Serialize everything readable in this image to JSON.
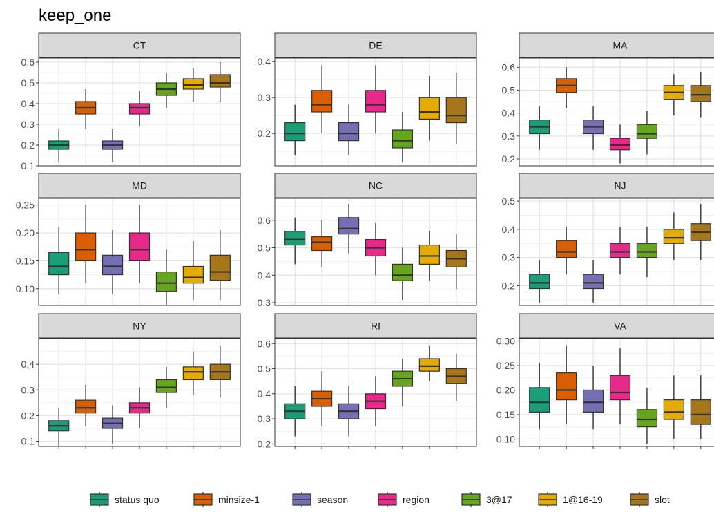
{
  "title": "keep_one",
  "colors": {
    "status quo": "#1b9e77",
    "minsize-1": "#d95f02",
    "season": "#7570b3",
    "region": "#e7298a",
    "3@17": "#66a61e",
    "1@16-19": "#e6ab02",
    "slot": "#a6761d"
  },
  "legend": {
    "position": "bottom",
    "items": [
      "status quo",
      "minsize-1",
      "season",
      "region",
      "3@17",
      "1@16-19",
      "slot"
    ]
  },
  "chart_data": {
    "type": "box",
    "title": "keep_one",
    "xlabel": "",
    "ylabel": "",
    "grid": true,
    "facets": [
      {
        "name": "CT",
        "ylim": [
          0.1,
          0.62
        ],
        "ticks": [
          "0.1",
          "0.2",
          "0.3",
          "0.4",
          "0.5",
          "0.6"
        ],
        "boxes": [
          {
            "series": "status quo",
            "min": 0.12,
            "q1": 0.18,
            "median": 0.2,
            "q3": 0.22,
            "max": 0.28
          },
          {
            "series": "minsize-1",
            "min": 0.28,
            "q1": 0.35,
            "median": 0.38,
            "q3": 0.41,
            "max": 0.47
          },
          {
            "series": "season",
            "min": 0.12,
            "q1": 0.18,
            "median": 0.2,
            "q3": 0.22,
            "max": 0.28
          },
          {
            "series": "region",
            "min": 0.29,
            "q1": 0.35,
            "median": 0.38,
            "q3": 0.4,
            "max": 0.46
          },
          {
            "series": "3@17",
            "min": 0.38,
            "q1": 0.44,
            "median": 0.47,
            "q3": 0.5,
            "max": 0.55
          },
          {
            "series": "1@16-19",
            "min": 0.41,
            "q1": 0.47,
            "median": 0.49,
            "q3": 0.52,
            "max": 0.57
          },
          {
            "series": "slot",
            "min": 0.41,
            "q1": 0.48,
            "median": 0.5,
            "q3": 0.54,
            "max": 0.6
          }
        ]
      },
      {
        "name": "DE",
        "ylim": [
          0.11,
          0.41
        ],
        "ticks": [
          "0.2",
          "0.3",
          "0.4"
        ],
        "boxes": [
          {
            "series": "status quo",
            "min": 0.14,
            "q1": 0.18,
            "median": 0.2,
            "q3": 0.23,
            "max": 0.28
          },
          {
            "series": "minsize-1",
            "min": 0.2,
            "q1": 0.26,
            "median": 0.28,
            "q3": 0.32,
            "max": 0.39
          },
          {
            "series": "season",
            "min": 0.14,
            "q1": 0.18,
            "median": 0.2,
            "q3": 0.23,
            "max": 0.28
          },
          {
            "series": "region",
            "min": 0.2,
            "q1": 0.26,
            "median": 0.28,
            "q3": 0.32,
            "max": 0.39
          },
          {
            "series": "3@17",
            "min": 0.12,
            "q1": 0.16,
            "median": 0.18,
            "q3": 0.21,
            "max": 0.26
          },
          {
            "series": "1@16-19",
            "min": 0.18,
            "q1": 0.24,
            "median": 0.26,
            "q3": 0.3,
            "max": 0.36
          },
          {
            "series": "slot",
            "min": 0.17,
            "q1": 0.23,
            "median": 0.25,
            "q3": 0.3,
            "max": 0.37
          }
        ]
      },
      {
        "name": "MA",
        "ylim": [
          0.17,
          0.64
        ],
        "ticks": [
          "0.2",
          "0.3",
          "0.4",
          "0.5",
          "0.6"
        ],
        "boxes": [
          {
            "series": "status quo",
            "min": 0.24,
            "q1": 0.31,
            "median": 0.34,
            "q3": 0.37,
            "max": 0.43
          },
          {
            "series": "minsize-1",
            "min": 0.42,
            "q1": 0.49,
            "median": 0.52,
            "q3": 0.55,
            "max": 0.6
          },
          {
            "series": "season",
            "min": 0.24,
            "q1": 0.31,
            "median": 0.34,
            "q3": 0.37,
            "max": 0.43
          },
          {
            "series": "region",
            "min": 0.18,
            "q1": 0.24,
            "median": 0.26,
            "q3": 0.29,
            "max": 0.35
          },
          {
            "series": "3@17",
            "min": 0.22,
            "q1": 0.29,
            "median": 0.31,
            "q3": 0.35,
            "max": 0.41
          },
          {
            "series": "1@16-19",
            "min": 0.39,
            "q1": 0.46,
            "median": 0.49,
            "q3": 0.52,
            "max": 0.57
          },
          {
            "series": "slot",
            "min": 0.38,
            "q1": 0.45,
            "median": 0.48,
            "q3": 0.52,
            "max": 0.58
          }
        ]
      },
      {
        "name": "MD",
        "ylim": [
          0.07,
          0.262
        ],
        "ticks": [
          "0.10",
          "0.15",
          "0.20",
          "0.25"
        ],
        "boxes": [
          {
            "series": "status quo",
            "min": 0.09,
            "q1": 0.125,
            "median": 0.14,
            "q3": 0.165,
            "max": 0.21
          },
          {
            "series": "minsize-1",
            "min": 0.11,
            "q1": 0.15,
            "median": 0.17,
            "q3": 0.2,
            "max": 0.25
          },
          {
            "series": "season",
            "min": 0.09,
            "q1": 0.125,
            "median": 0.14,
            "q3": 0.16,
            "max": 0.205
          },
          {
            "series": "region",
            "min": 0.11,
            "q1": 0.15,
            "median": 0.17,
            "q3": 0.2,
            "max": 0.25
          },
          {
            "series": "3@17",
            "min": 0.07,
            "q1": 0.095,
            "median": 0.11,
            "q3": 0.13,
            "max": 0.17
          },
          {
            "series": "1@16-19",
            "min": 0.08,
            "q1": 0.11,
            "median": 0.12,
            "q3": 0.14,
            "max": 0.185
          },
          {
            "series": "slot",
            "min": 0.08,
            "q1": 0.115,
            "median": 0.13,
            "q3": 0.16,
            "max": 0.205
          }
        ]
      },
      {
        "name": "NC",
        "ylim": [
          0.29,
          0.68
        ],
        "ticks": [
          "0.3",
          "0.4",
          "0.5",
          "0.6"
        ],
        "boxes": [
          {
            "series": "status quo",
            "min": 0.44,
            "q1": 0.51,
            "median": 0.53,
            "q3": 0.56,
            "max": 0.61
          },
          {
            "series": "minsize-1",
            "min": 0.43,
            "q1": 0.49,
            "median": 0.52,
            "q3": 0.54,
            "max": 0.6
          },
          {
            "series": "season",
            "min": 0.48,
            "q1": 0.55,
            "median": 0.57,
            "q3": 0.61,
            "max": 0.66
          },
          {
            "series": "region",
            "min": 0.4,
            "q1": 0.47,
            "median": 0.5,
            "q3": 0.53,
            "max": 0.59
          },
          {
            "series": "3@17",
            "min": 0.31,
            "q1": 0.38,
            "median": 0.4,
            "q3": 0.44,
            "max": 0.5
          },
          {
            "series": "1@16-19",
            "min": 0.38,
            "q1": 0.44,
            "median": 0.47,
            "q3": 0.51,
            "max": 0.56
          },
          {
            "series": "slot",
            "min": 0.35,
            "q1": 0.43,
            "median": 0.46,
            "q3": 0.49,
            "max": 0.55
          }
        ]
      },
      {
        "name": "NJ",
        "ylim": [
          0.13,
          0.51
        ],
        "ticks": [
          "0.2",
          "0.3",
          "0.4",
          "0.5"
        ],
        "boxes": [
          {
            "series": "status quo",
            "min": 0.14,
            "q1": 0.19,
            "median": 0.21,
            "q3": 0.24,
            "max": 0.29
          },
          {
            "series": "minsize-1",
            "min": 0.24,
            "q1": 0.3,
            "median": 0.32,
            "q3": 0.36,
            "max": 0.41
          },
          {
            "series": "season",
            "min": 0.14,
            "q1": 0.19,
            "median": 0.21,
            "q3": 0.24,
            "max": 0.29
          },
          {
            "series": "region",
            "min": 0.24,
            "q1": 0.3,
            "median": 0.32,
            "q3": 0.35,
            "max": 0.41
          },
          {
            "series": "3@17",
            "min": 0.23,
            "q1": 0.3,
            "median": 0.32,
            "q3": 0.35,
            "max": 0.41
          },
          {
            "series": "1@16-19",
            "min": 0.29,
            "q1": 0.35,
            "median": 0.37,
            "q3": 0.4,
            "max": 0.46
          },
          {
            "series": "slot",
            "min": 0.29,
            "q1": 0.36,
            "median": 0.39,
            "q3": 0.42,
            "max": 0.49
          }
        ]
      },
      {
        "name": "NY",
        "ylim": [
          0.08,
          0.5
        ],
        "ticks": [
          "0.1",
          "0.2",
          "0.3",
          "0.4"
        ],
        "boxes": [
          {
            "series": "status quo",
            "min": 0.08,
            "q1": 0.14,
            "median": 0.16,
            "q3": 0.18,
            "max": 0.23
          },
          {
            "series": "minsize-1",
            "min": 0.16,
            "q1": 0.21,
            "median": 0.23,
            "q3": 0.26,
            "max": 0.32
          },
          {
            "series": "season",
            "min": 0.09,
            "q1": 0.15,
            "median": 0.17,
            "q3": 0.19,
            "max": 0.24
          },
          {
            "series": "region",
            "min": 0.15,
            "q1": 0.21,
            "median": 0.23,
            "q3": 0.25,
            "max": 0.31
          },
          {
            "series": "3@17",
            "min": 0.23,
            "q1": 0.29,
            "median": 0.31,
            "q3": 0.34,
            "max": 0.39
          },
          {
            "series": "1@16-19",
            "min": 0.28,
            "q1": 0.34,
            "median": 0.37,
            "q3": 0.39,
            "max": 0.45
          },
          {
            "series": "slot",
            "min": 0.27,
            "q1": 0.34,
            "median": 0.37,
            "q3": 0.4,
            "max": 0.47
          }
        ]
      },
      {
        "name": "RI",
        "ylim": [
          0.19,
          0.62
        ],
        "ticks": [
          "0.2",
          "0.3",
          "0.4",
          "0.5",
          "0.6"
        ],
        "boxes": [
          {
            "series": "status quo",
            "min": 0.23,
            "q1": 0.3,
            "median": 0.33,
            "q3": 0.36,
            "max": 0.43
          },
          {
            "series": "minsize-1",
            "min": 0.27,
            "q1": 0.35,
            "median": 0.38,
            "q3": 0.41,
            "max": 0.49
          },
          {
            "series": "season",
            "min": 0.23,
            "q1": 0.3,
            "median": 0.33,
            "q3": 0.36,
            "max": 0.43
          },
          {
            "series": "region",
            "min": 0.27,
            "q1": 0.34,
            "median": 0.37,
            "q3": 0.4,
            "max": 0.47
          },
          {
            "series": "3@17",
            "min": 0.35,
            "q1": 0.43,
            "median": 0.46,
            "q3": 0.49,
            "max": 0.54
          },
          {
            "series": "1@16-19",
            "min": 0.45,
            "q1": 0.49,
            "median": 0.51,
            "q3": 0.54,
            "max": 0.59
          },
          {
            "series": "slot",
            "min": 0.37,
            "q1": 0.44,
            "median": 0.47,
            "q3": 0.5,
            "max": 0.56
          }
        ]
      },
      {
        "name": "VA",
        "ylim": [
          0.085,
          0.305
        ],
        "ticks": [
          "0.10",
          "0.15",
          "0.20",
          "0.25",
          "0.30"
        ],
        "boxes": [
          {
            "series": "status quo",
            "min": 0.12,
            "q1": 0.155,
            "median": 0.175,
            "q3": 0.205,
            "max": 0.255
          },
          {
            "series": "minsize-1",
            "min": 0.13,
            "q1": 0.18,
            "median": 0.2,
            "q3": 0.235,
            "max": 0.29
          },
          {
            "series": "season",
            "min": 0.12,
            "q1": 0.155,
            "median": 0.175,
            "q3": 0.2,
            "max": 0.25
          },
          {
            "series": "region",
            "min": 0.13,
            "q1": 0.18,
            "median": 0.195,
            "q3": 0.23,
            "max": 0.285
          },
          {
            "series": "3@17",
            "min": 0.09,
            "q1": 0.125,
            "median": 0.14,
            "q3": 0.16,
            "max": 0.205
          },
          {
            "series": "1@16-19",
            "min": 0.1,
            "q1": 0.14,
            "median": 0.155,
            "q3": 0.18,
            "max": 0.23
          },
          {
            "series": "slot",
            "min": 0.1,
            "q1": 0.13,
            "median": 0.15,
            "q3": 0.18,
            "max": 0.23
          }
        ]
      }
    ]
  }
}
